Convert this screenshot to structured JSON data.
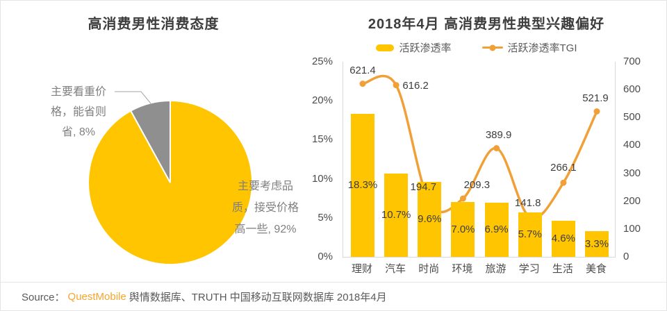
{
  "footer": {
    "prefix": "Source：",
    "brand": "QuestMobile",
    "rest": "舆情数据库、TRUTH 中国移动互联网数据库 2018年4月"
  },
  "colors": {
    "yellow": "#FFC500",
    "orange": "#F1A037",
    "gray_slice": "#8F8F8F",
    "leader_line": "#A6A6A6"
  },
  "chart_data": [
    {
      "type": "pie",
      "title": "高消费男性消费态度",
      "slices": [
        {
          "name": "主要考虑品质，接受价格高一些",
          "value_pct": 92,
          "color": "#FFC500",
          "display_label": "主要考虑品质，接受价格高一些, 92%",
          "label_lines": [
            "主要考虑品",
            "质，接受价格",
            "高一些, 92%"
          ]
        },
        {
          "name": "主要看重价格，能省则省",
          "value_pct": 8,
          "color": "#8F8F8F",
          "display_label": "主要看重价格，能省则省, 8%",
          "label_lines": [
            "主要看重价",
            "格，能省则",
            "省, 8%"
          ]
        }
      ],
      "start_at_top": true,
      "clockwise": true,
      "legend_position": "none"
    },
    {
      "type": "bar+line",
      "title": "2018年4月 高消费男性典型兴趣偏好",
      "categories": [
        "理财",
        "汽车",
        "时尚",
        "环境",
        "旅游",
        "学习",
        "生活",
        "美食"
      ],
      "series": [
        {
          "name": "活跃渗透率",
          "chart": "bar",
          "axis": "left",
          "color": "#FFC500",
          "values": [
            18.3,
            10.7,
            9.6,
            7.0,
            6.9,
            5.7,
            4.6,
            3.3
          ],
          "value_labels": [
            "18.3%",
            "10.7%",
            "9.6%",
            "7.0%",
            "6.9%",
            "5.7%",
            "4.6%",
            "3.3%"
          ]
        },
        {
          "name": "活跃渗透率TGI",
          "chart": "line",
          "axis": "right",
          "color": "#F1A037",
          "smooth": true,
          "values": [
            621.4,
            616.2,
            194.7,
            209.3,
            389.9,
            141.8,
            266.1,
            521.9
          ],
          "value_labels": [
            "621.4",
            "616.2",
            "194.7",
            "209.3",
            "389.9",
            "141.8",
            "266.1",
            "521.9"
          ],
          "label_offsets": [
            [
              0,
              -19
            ],
            [
              28,
              1
            ],
            [
              -9,
              -22
            ],
            [
              20,
              -19
            ],
            [
              3,
              -19
            ],
            [
              -3,
              -20
            ],
            [
              0,
              -21
            ],
            [
              -2,
              -19
            ]
          ]
        }
      ],
      "left_axis": {
        "min": 0,
        "max": 25,
        "ticks": [
          "25%",
          "20%",
          "15%",
          "10%",
          "5%",
          "0%"
        ]
      },
      "right_axis": {
        "min": 0,
        "max": 700,
        "ticks": [
          "700",
          "600",
          "500",
          "400",
          "300",
          "200",
          "100",
          "0"
        ]
      },
      "grid": false,
      "legend_position": "top"
    }
  ]
}
